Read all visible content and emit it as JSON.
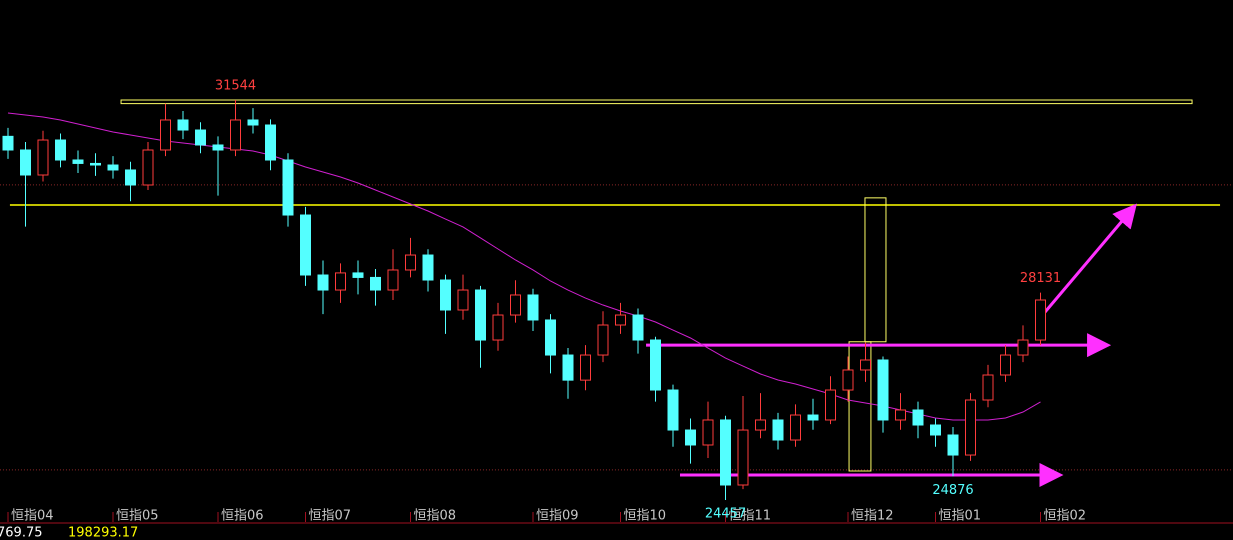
{
  "chart_data": {
    "type": "candlestick",
    "categories": [
      "恒指04",
      null,
      null,
      null,
      null,
      null,
      "恒指05",
      null,
      null,
      null,
      null,
      null,
      "恒指06",
      null,
      null,
      null,
      null,
      "恒指07",
      null,
      null,
      null,
      null,
      null,
      "恒指08",
      null,
      null,
      null,
      null,
      null,
      null,
      "恒指09",
      null,
      null,
      null,
      null,
      "恒指10",
      null,
      null,
      null,
      null,
      null,
      "恒指11",
      null,
      null,
      null,
      null,
      null,
      null,
      "恒指12",
      null,
      null,
      null,
      null,
      "恒指01",
      null,
      null,
      null,
      null,
      null,
      "恒指02"
    ],
    "open": [
      30900,
      30658,
      30215,
      30835,
      30481,
      30420,
      30392,
      30304,
      30038,
      30658,
      31190,
      31012,
      30747,
      30658,
      31190,
      31101,
      30481,
      29506,
      28443,
      28177,
      28480,
      28400,
      28177,
      28532,
      28797,
      28354,
      27823,
      28177,
      27291,
      27734,
      28089,
      27646,
      27025,
      26580,
      27025,
      27557,
      27734,
      27291,
      26405,
      25696,
      25431,
      25874,
      24722,
      25696,
      25874,
      25519,
      25962,
      25874,
      26405,
      26760,
      26937,
      25874,
      26051,
      25785,
      25608,
      25253,
      26228,
      26671,
      27025,
      27291
    ],
    "high": [
      31050,
      30800,
      31000,
      30950,
      30650,
      30600,
      30550,
      30450,
      30800,
      31480,
      31350,
      31150,
      30900,
      31544,
      31400,
      31200,
      30600,
      29650,
      28700,
      28650,
      28700,
      28550,
      28900,
      29100,
      28900,
      28450,
      28450,
      28250,
      27950,
      28350,
      28200,
      27750,
      27150,
      27200,
      27800,
      27950,
      27850,
      27350,
      26500,
      25900,
      26200,
      25950,
      26300,
      26350,
      26000,
      26150,
      26250,
      26650,
      27000,
      27250,
      27000,
      26350,
      26200,
      25900,
      25750,
      26350,
      26850,
      27200,
      27550,
      28131
    ],
    "low": [
      30500,
      29300,
      30100,
      30350,
      30250,
      30200,
      30150,
      29750,
      29950,
      30550,
      30850,
      30600,
      29850,
      30550,
      30950,
      30300,
      29300,
      28250,
      27750,
      27950,
      28100,
      27900,
      28000,
      28400,
      28150,
      27400,
      27650,
      26800,
      27100,
      27600,
      27450,
      26700,
      26250,
      26400,
      26900,
      27400,
      27050,
      26200,
      25400,
      25100,
      25200,
      24457,
      24650,
      25550,
      25350,
      25400,
      25700,
      25800,
      26200,
      26550,
      25650,
      25700,
      25550,
      25400,
      24876,
      25150,
      26100,
      26550,
      26900,
      27200
    ],
    "close": [
      30658,
      30215,
      30835,
      30481,
      30420,
      30392,
      30304,
      30038,
      30658,
      31190,
      31012,
      30747,
      30658,
      31190,
      31101,
      30481,
      29506,
      28443,
      28177,
      28480,
      28400,
      28177,
      28532,
      28797,
      28354,
      27823,
      28177,
      27291,
      27734,
      28089,
      27646,
      27025,
      26580,
      27025,
      27557,
      27734,
      27291,
      26405,
      25696,
      25431,
      25874,
      24722,
      25696,
      25874,
      25519,
      25962,
      25874,
      26405,
      26760,
      26937,
      25874,
      26051,
      25785,
      25608,
      25253,
      26228,
      26671,
      27025,
      27291,
      28000
    ],
    "up_color": "#ff3c3c",
    "down_color": "#54ffff",
    "ma": {
      "color": "#d020d0",
      "values": [
        31314,
        31278,
        31243,
        31190,
        31119,
        31048,
        30977,
        30924,
        30871,
        30817,
        30782,
        30747,
        30711,
        30676,
        30640,
        30569,
        30463,
        30357,
        30268,
        30180,
        30073,
        29949,
        29825,
        29701,
        29577,
        29435,
        29294,
        29099,
        28904,
        28709,
        28532,
        28337,
        28177,
        28035,
        27911,
        27805,
        27716,
        27610,
        27468,
        27327,
        27149,
        26972,
        26830,
        26689,
        26582,
        26512,
        26423,
        26334,
        26228,
        26175,
        26122,
        26051,
        25980,
        25909,
        25874,
        25874,
        25874,
        25909,
        26015,
        26193
      ]
    },
    "ylim": [
      24279,
      33316
    ],
    "annotations": [
      {
        "shape": "rect",
        "color": "#ffff66",
        "from": [
          6.46,
          31544
        ],
        "to": [
          67.66,
          31480
        ]
      },
      {
        "shape": "line",
        "color": "#ffff00",
        "from": [
          0.11,
          29683
        ],
        "to": [
          69.26,
          29683
        ]
      },
      {
        "shape": "dotted",
        "color": "#902828",
        "from": [
          -0.46,
          30040
        ],
        "to": [
          70,
          30040
        ]
      },
      {
        "shape": "dotted",
        "color": "#902828",
        "from": [
          -0.46,
          24990
        ],
        "to": [
          70,
          24990
        ]
      },
      {
        "shape": "rect",
        "color": "#ffff66",
        "from": [
          48.97,
          29810
        ],
        "to": [
          50.17,
          27260
        ]
      },
      {
        "shape": "rect",
        "color": "#ffff66",
        "from": [
          48.06,
          27260
        ],
        "to": [
          49.31,
          24970
        ]
      },
      {
        "shape": "arrow",
        "color": "#ff30ff",
        "from": [
          36.46,
          27200
        ],
        "to": [
          62.69,
          27200
        ]
      },
      {
        "shape": "arrow",
        "color": "#ff30ff",
        "from": [
          38.4,
          24900
        ],
        "to": [
          59.97,
          24900
        ]
      },
      {
        "shape": "arrow",
        "color": "#ff30ff",
        "from": [
          58.97,
          27681
        ],
        "to": [
          64.29,
          29630
        ]
      }
    ],
    "status": {
      "a": 769.75,
      "b": 198293.17
    }
  }
}
